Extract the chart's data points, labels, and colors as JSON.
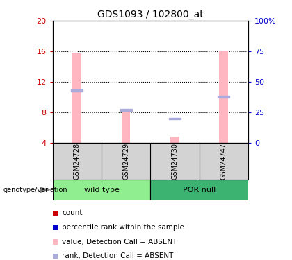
{
  "title": "GDS1093 / 102800_at",
  "samples": [
    "GSM24728",
    "GSM24729",
    "GSM24730",
    "GSM24747"
  ],
  "groups": [
    {
      "name": "wild type",
      "color": "#90EE90",
      "indices": [
        0,
        1
      ]
    },
    {
      "name": "POR null",
      "color": "#3CB371",
      "indices": [
        2,
        3
      ]
    }
  ],
  "ylim": [
    4,
    20
  ],
  "yticks": [
    4,
    8,
    12,
    16,
    20
  ],
  "y2ticks": [
    0,
    25,
    50,
    75,
    100
  ],
  "y2labels": [
    "0",
    "25",
    "50",
    "75",
    "100%"
  ],
  "bar_color_absent": "#FFB6C1",
  "rank_color_absent": "#AAAADD",
  "bar_width": 0.18,
  "bars_absent": [
    15.7,
    8.2,
    4.8,
    16.0
  ],
  "ranks_absent_pct": [
    43,
    27,
    20,
    38
  ],
  "x_positions": [
    1,
    2,
    3,
    4
  ],
  "group_bg": "#D3D3D3",
  "group_light_green": "#90EE90",
  "group_dark_green": "#3CB371",
  "legend_items": [
    {
      "color": "#CC0000",
      "label": "count"
    },
    {
      "color": "#0000CC",
      "label": "percentile rank within the sample"
    },
    {
      "color": "#FFB6C1",
      "label": "value, Detection Call = ABSENT"
    },
    {
      "color": "#AAAADD",
      "label": "rank, Detection Call = ABSENT"
    }
  ],
  "left_label": "genotype/variation",
  "y_axis_color": "#CC0000",
  "y2_axis_color": "#0000CC",
  "title_fontsize": 10,
  "tick_fontsize": 8,
  "sample_fontsize": 7,
  "group_fontsize": 8,
  "legend_fontsize": 7.5
}
